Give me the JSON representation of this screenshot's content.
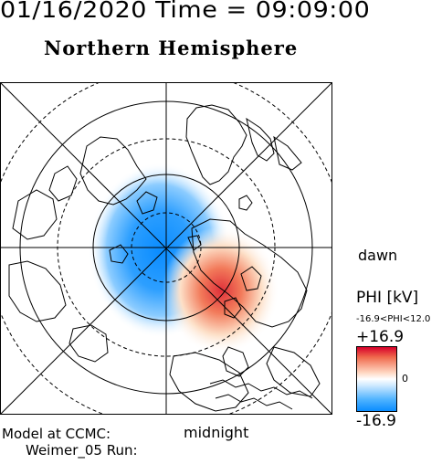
{
  "header": {
    "date_time": "01/16/2020 Time = 09:09:00",
    "title": "Northern Hemisphere"
  },
  "map": {
    "dawn_label": "dawn",
    "midnight_label": "midnight",
    "projection": "polar-stereographic",
    "colors": {
      "positive": "#d7002a",
      "negative": "#0a8cff",
      "zero": "#ffffff"
    }
  },
  "colorbar": {
    "title": "PHI [kV]",
    "range_text": "-16.9<PHI<12.0",
    "max_label": "+16.9",
    "zero_label": "0",
    "min_label": "-16.9"
  },
  "footer": {
    "model_line": "Model at CCMC:",
    "run_line": "Weimer_05 Run:"
  }
}
